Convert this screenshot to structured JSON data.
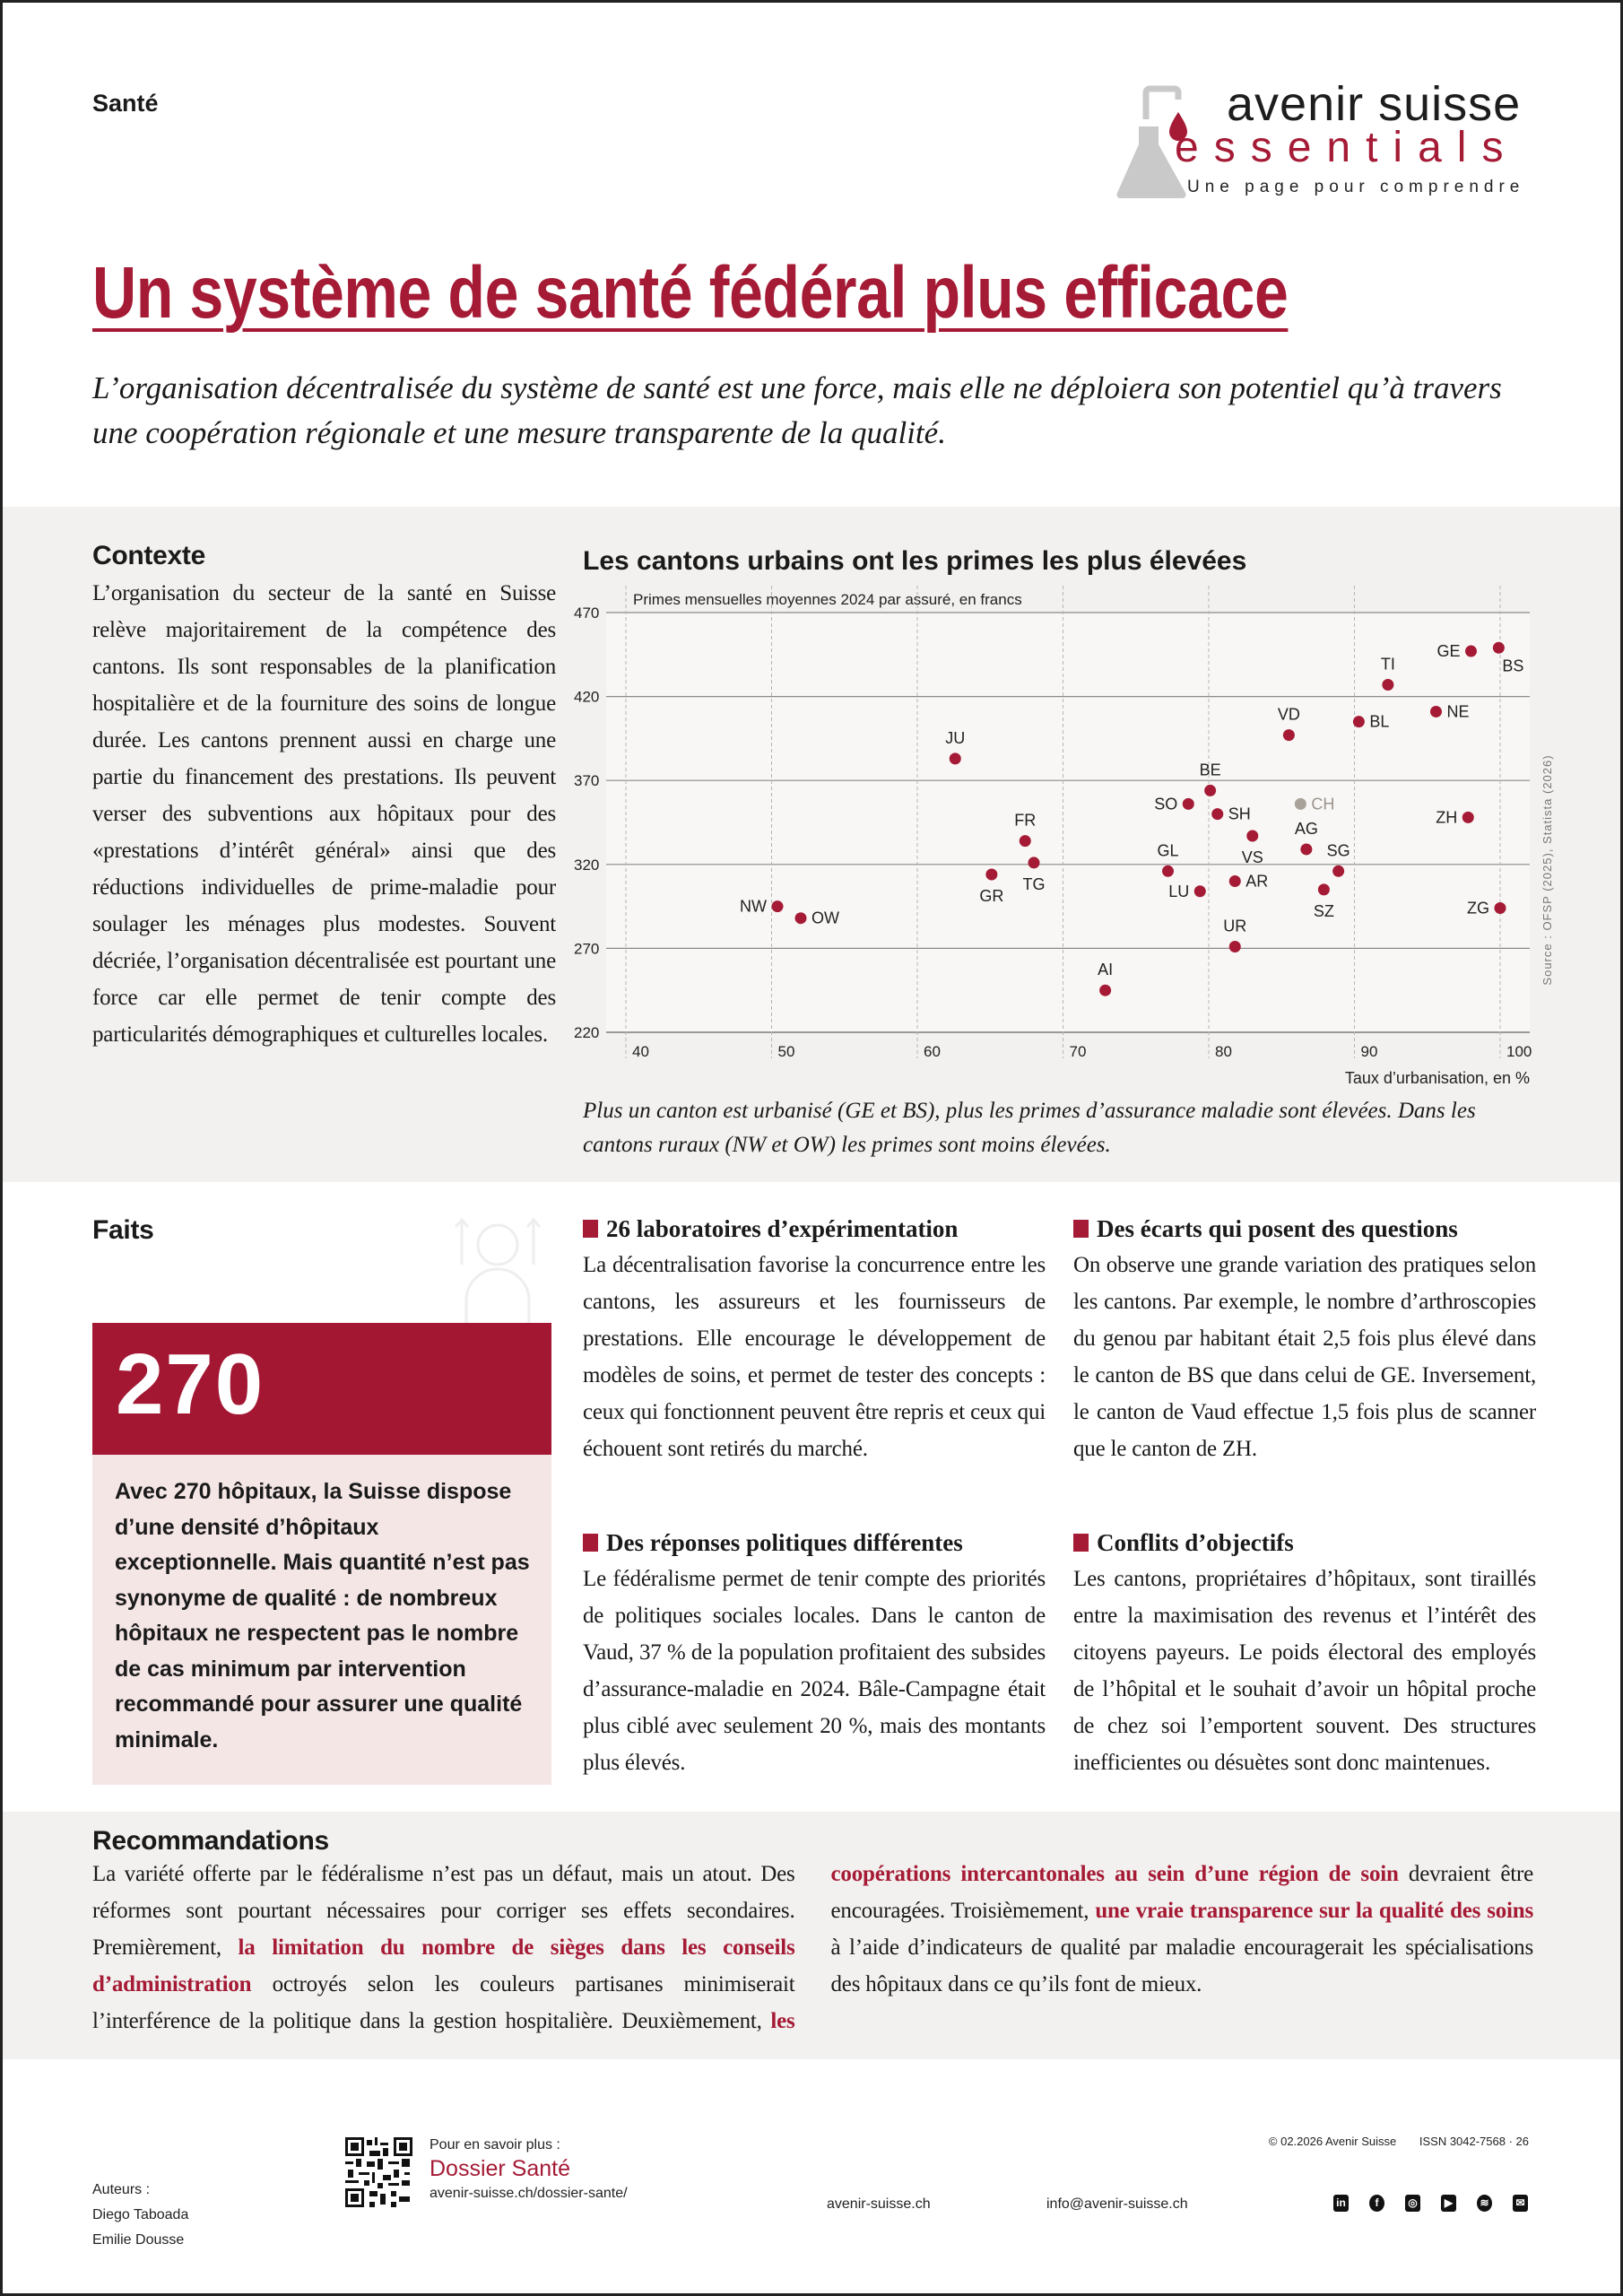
{
  "header": {
    "rubric": "Santé",
    "logo": {
      "brand": "avenir suisse",
      "product": "essentials",
      "tagline": "Une page pour comprendre"
    },
    "title": "Un système de santé fédéral plus efficace",
    "lead": "L’organisation décentralisée du système de santé est une force, mais elle ne déploiera son potentiel qu’à travers une coopération régionale et une mesure transparente de la qualité."
  },
  "context": {
    "heading": "Contexte",
    "text": "L’organisation du secteur de la santé en Suisse relève majoritairement de la compétence des cantons. Ils sont responsables de la planification hospitalière et de la fourniture des soins de longue durée. Les cantons prennent aussi en charge une partie du financement des prestations. Ils peuvent verser des subventions aux hôpitaux pour des «prestations d’intérêt général» ainsi que des réductions individuelles de prime-maladie pour soulager les ménages plus modestes. Souvent décriée, l’organisation décentralisée est pourtant une force car elle permet de tenir compte des particularités démographiques et culturelles locales."
  },
  "chart_data": {
    "type": "scatter",
    "title": "Les cantons urbains ont les primes les plus élevées",
    "subtitle": "Primes mensuelles moyennes 2024 par assuré, en francs",
    "xlabel": "Taux d’urbanisation, en %",
    "ylabel": "Primes mensuelles moyennes 2024 par assuré, en francs",
    "source": "Source : OFSP (2025), Statista (2026)",
    "xlim": [
      40,
      100
    ],
    "ylim": [
      220,
      470
    ],
    "xticks": [
      "40",
      "50",
      "60",
      "70",
      "80",
      "90",
      "100"
    ],
    "yticks": [
      "470",
      "420",
      "370",
      "320",
      "270",
      "220"
    ],
    "grid": true,
    "colors": {
      "canton": "#a51a35",
      "national": "#a8a29a"
    },
    "points": [
      {
        "label": "NW",
        "x": 50.4,
        "y": 295
      },
      {
        "label": "OW",
        "x": 52.0,
        "y": 288
      },
      {
        "label": "JU",
        "x": 62.6,
        "y": 383
      },
      {
        "label": "GR",
        "x": 65.1,
        "y": 314
      },
      {
        "label": "FR",
        "x": 67.4,
        "y": 334
      },
      {
        "label": "TG",
        "x": 68.0,
        "y": 321
      },
      {
        "label": "AI",
        "x": 72.9,
        "y": 245
      },
      {
        "label": "GL",
        "x": 77.2,
        "y": 316
      },
      {
        "label": "SO",
        "x": 78.6,
        "y": 356
      },
      {
        "label": "BE",
        "x": 80.1,
        "y": 364
      },
      {
        "label": "SH",
        "x": 80.6,
        "y": 350
      },
      {
        "label": "LU",
        "x": 79.4,
        "y": 304
      },
      {
        "label": "VS",
        "x": 83.0,
        "y": 337
      },
      {
        "label": "AR",
        "x": 81.8,
        "y": 310
      },
      {
        "label": "UR",
        "x": 81.8,
        "y": 271
      },
      {
        "label": "VD",
        "x": 85.5,
        "y": 397
      },
      {
        "label": "CH",
        "x": 86.3,
        "y": 356,
        "national": true
      },
      {
        "label": "AG",
        "x": 86.7,
        "y": 329
      },
      {
        "label": "SG",
        "x": 88.9,
        "y": 316
      },
      {
        "label": "SZ",
        "x": 87.9,
        "y": 305
      },
      {
        "label": "BL",
        "x": 90.3,
        "y": 405
      },
      {
        "label": "TI",
        "x": 92.3,
        "y": 427
      },
      {
        "label": "NE",
        "x": 95.6,
        "y": 411
      },
      {
        "label": "GE",
        "x": 98.0,
        "y": 447
      },
      {
        "label": "BS",
        "x": 99.9,
        "y": 449
      },
      {
        "label": "ZH",
        "x": 97.8,
        "y": 348
      },
      {
        "label": "ZG",
        "x": 100.0,
        "y": 294
      }
    ],
    "caption": "Plus un canton est urbanisé (GE et BS), plus les primes d’assurance maladie sont élevées. Dans les cantons ruraux (NW et OW) les primes sont moins élevées."
  },
  "facts": {
    "heading": "Faits",
    "number": "270",
    "number_text": "Avec 270 hôpitaux, la Suisse dispose d’une densité d’hôpitaux exceptionnelle. Mais quantité n’est pas synonyme de qualité : de nombreux hôpitaux ne respectent pas le nombre de cas minimum par intervention recommandé pour assurer une qualité minimale.",
    "items": [
      {
        "title": "26 laboratoires d’expérimentation",
        "text": "La décentralisation favorise la concurrence entre les cantons, les assureurs et les fournisseurs de prestations. Elle encourage le développement de modèles de soins, et permet de tester des concepts : ceux qui fonctionnent peuvent être repris et ceux qui échouent sont retirés du marché."
      },
      {
        "title": "Des réponses politiques différentes",
        "text": "Le fédéralisme permet de tenir compte des priorités de politiques sociales locales. Dans le canton de Vaud, 37 % de la population profitaient des subsides d’assurance-maladie en 2024. Bâle-Campagne était plus ciblé avec seulement 20 %, mais des montants plus élevés."
      },
      {
        "title": "Des écarts qui posent des questions",
        "text": "On observe une grande variation des pratiques selon les cantons. Par exemple, le nombre d’arthroscopies du genou par habitant était 2,5 fois plus élevé dans le canton de BS que dans celui de GE. Inversement, le canton de Vaud effectue 1,5 fois plus de scanner que le canton de ZH."
      },
      {
        "title": "Conflits d’objectifs",
        "text": "Les cantons, propriétaires d’hôpitaux, sont tiraillés entre la maximisation des revenus et l’intérêt des citoyens payeurs. Le poids électoral des employés de l’hôpital et le souhait d’avoir un hôpital proche de chez soi l’emportent souvent. Des structures inefficientes ou désuètes sont donc maintenues."
      }
    ]
  },
  "recommendations": {
    "heading": "Recommandations",
    "segments": [
      "La variété offerte par le fédéralisme n’est pas un défaut, mais un atout. Des réformes sont pourtant nécessaires pour corriger ses effets secondaires. Premièrement, ",
      "la limitation du nombre de sièges dans les conseils d’administration",
      " octroyés selon les couleurs partisanes minimiserait l’interférence de la politique dans la gestion hospitalière. Deuxièmement, ",
      "les coopérations intercantonales au sein d’une région de soin",
      " devraient être encouragées. Troisièmement, ",
      "une vraie transparence sur la qualité des soins",
      " à l’aide d’indicateurs de qualité par maladie encouragerait les spécialisations des hôpitaux dans ce qu’ils font de mieux."
    ]
  },
  "footer": {
    "copyright": "© 02.2026 Avenir Suisse",
    "issn": "ISSN 3042-7568 · 26",
    "authors_label": "Auteurs :",
    "authors": [
      "Diego Taboada",
      "Emilie Dousse"
    ],
    "more_label": "Pour en savoir plus :",
    "dossier_title": "Dossier Santé",
    "dossier_url": "avenir-suisse.ch/dossier-sante/",
    "website": "avenir-suisse.ch",
    "email": "info@avenir-suisse.ch",
    "social_icons": [
      "linkedin-icon",
      "facebook-icon",
      "instagram-icon",
      "youtube-icon",
      "spotify-icon",
      "email-icon"
    ]
  }
}
